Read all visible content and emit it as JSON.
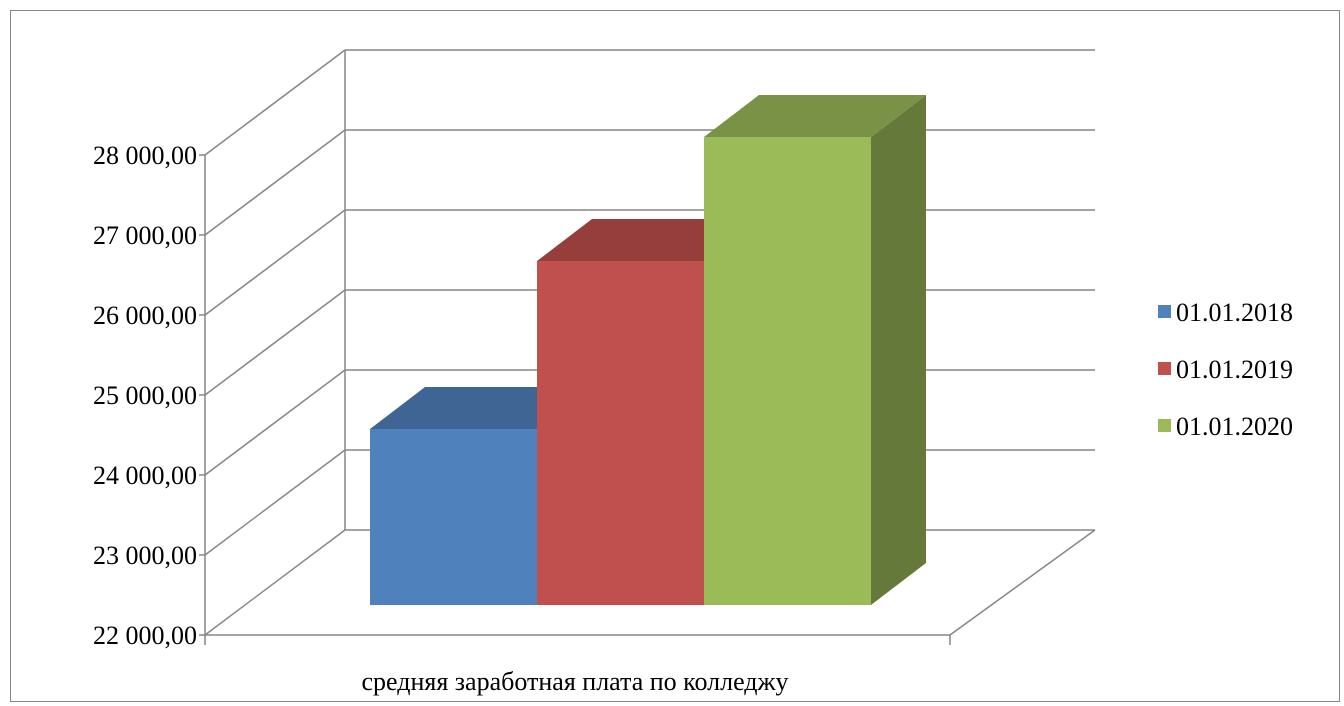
{
  "chart_data": {
    "type": "bar",
    "categories": [
      "средняя заработная плата по колледжу"
    ],
    "series": [
      {
        "name": "01.01.2018",
        "values": [
          24200
        ],
        "color": "#4F81BD"
      },
      {
        "name": "01.01.2019",
        "values": [
          26300
        ],
        "color": "#C0504D"
      },
      {
        "name": "01.01.2020",
        "values": [
          27850
        ],
        "color": "#9BBB59"
      }
    ],
    "y_ticks": [
      "22 000,00",
      "23 000,00",
      "24 000,00",
      "25 000,00",
      "26 000,00",
      "27 000,00",
      "28 000,00"
    ],
    "ylim": [
      22000,
      28000
    ],
    "grid": true,
    "legend_position": "right",
    "three_d": true
  }
}
